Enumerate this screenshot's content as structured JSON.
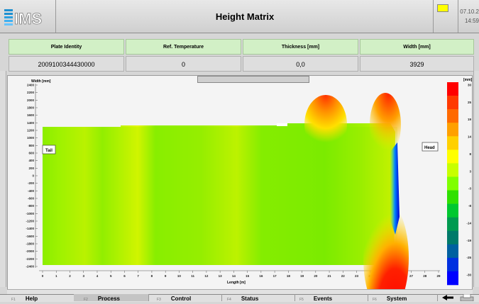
{
  "header": {
    "logo_text": "IMS",
    "title": "Height Matrix",
    "date_line1": "07.10.2",
    "date_line2": "14:59"
  },
  "info": {
    "headers": [
      "Plate Identity",
      "Ref. Temperature",
      "Thickness [mm]",
      "Width [mm]"
    ],
    "values": [
      "2009100344430000",
      "0",
      "0,0",
      "3929"
    ]
  },
  "plot": {
    "y_axis_title": "Width [mm]",
    "x_axis_title": "Length [m]",
    "y_ticks": [
      "2400",
      "2200",
      "2000",
      "1800",
      "1600",
      "1400",
      "1200",
      "1000",
      "800",
      "600",
      "400",
      "200",
      "0",
      "-200",
      "-400",
      "-600",
      "-800",
      "-1000",
      "-1200",
      "-1400",
      "-1600",
      "-1800",
      "-2000",
      "-2200",
      "-2400"
    ],
    "x_ticks": [
      "0",
      "1",
      "2",
      "3",
      "4",
      "5",
      "6",
      "7",
      "8",
      "9",
      "10",
      "11",
      "12",
      "13",
      "14",
      "15",
      "16",
      "17",
      "18",
      "19",
      "20",
      "21",
      "22",
      "23",
      "24",
      "25",
      "26",
      "27",
      "28",
      "29"
    ],
    "tail_label": "Tail",
    "head_label": "Head",
    "colorbar_title": "[mm]",
    "colorbar_ticks": [
      "30",
      "25",
      "19",
      "14",
      "8",
      "3",
      "-3",
      "-8",
      "-14",
      "-19",
      "-25",
      "-30"
    ],
    "colorbar_colors": [
      "#ff0000",
      "#ff3a00",
      "#ff6a00",
      "#ffa000",
      "#ffd000",
      "#ffff00",
      "#c8ff00",
      "#80ff00",
      "#30e000",
      "#00c830",
      "#009a50",
      "#007a6a",
      "#0060a0",
      "#0030e0",
      "#0000ff"
    ]
  },
  "footer": {
    "keys": [
      {
        "num": "F1",
        "label": "Help"
      },
      {
        "num": "F2",
        "label": "Process"
      },
      {
        "num": "F3",
        "label": "Control"
      },
      {
        "num": "F4",
        "label": "Status"
      },
      {
        "num": "F5",
        "label": "Events"
      },
      {
        "num": "F6",
        "label": "System"
      }
    ],
    "back_icon": "arrow-left-icon",
    "print_icon": "printer-icon"
  }
}
